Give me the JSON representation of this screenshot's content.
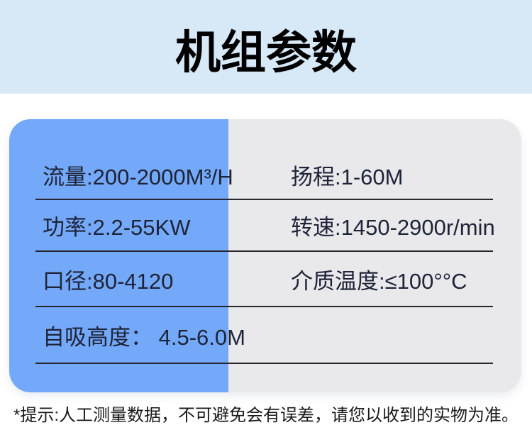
{
  "header": {
    "title": "机组参数"
  },
  "card": {
    "rows": [
      {
        "left": "流量:200-2000M³/H",
        "right": "扬程:1-60M"
      },
      {
        "left": "功率:2.2-55KW",
        "right": "转速:1450-2900r/min"
      },
      {
        "left": "口径:80-4120",
        "right": "介质温度:≤100°°C"
      },
      {
        "left": "自吸高度： 4.5-6.0M",
        "right": ""
      }
    ]
  },
  "footer": {
    "note": "*提示:人工测量数据，不可避免会有误差，请您以收到的实物为准。"
  },
  "colors": {
    "header_background": "#D7E8F6",
    "panel_blue": "#74A8F8",
    "panel_gray": "#E9E8EA",
    "divider": "#26262E",
    "spec_text": "#1D2438",
    "title_text": "#000000",
    "note_text": "#1A1A1A"
  }
}
